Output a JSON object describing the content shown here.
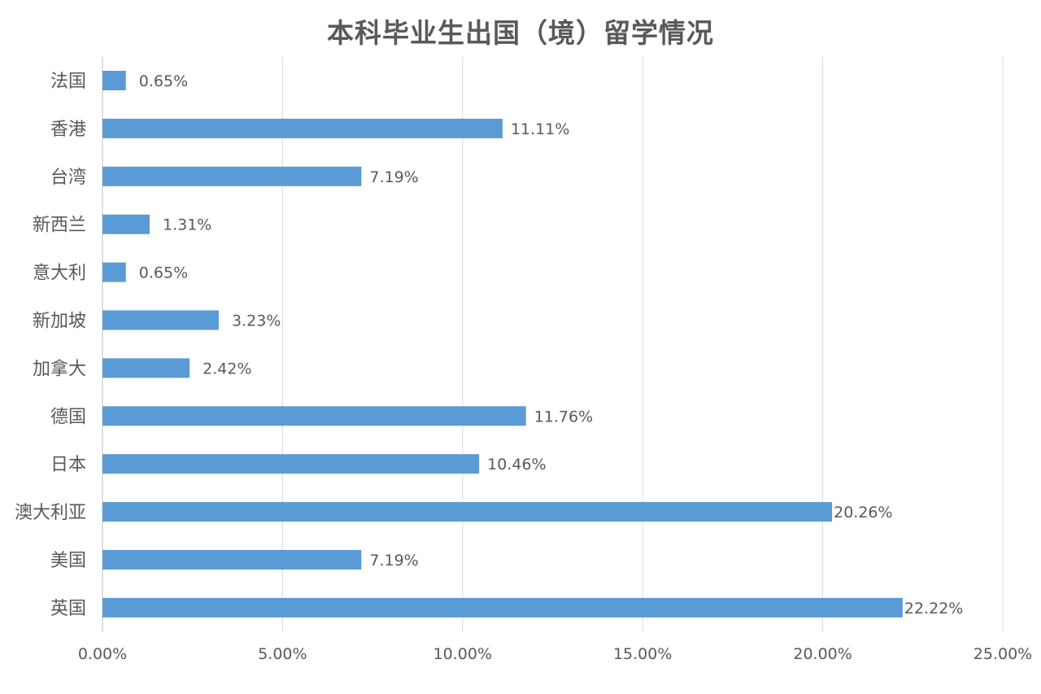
{
  "chart_data": {
    "type": "bar",
    "orientation": "horizontal",
    "title": "本科毕业生出国（境）留学情况",
    "xlabel": "",
    "ylabel": "",
    "xlim": [
      0,
      25
    ],
    "x_ticks": [
      0,
      5,
      10,
      15,
      20,
      25
    ],
    "x_tick_labels": [
      "0.00%",
      "5.00%",
      "10.00%",
      "15.00%",
      "20.00%",
      "25.00%"
    ],
    "grid": "vertical",
    "legend": "none",
    "categories": [
      "法国",
      "香港",
      "台湾",
      "新西兰",
      "意大利",
      "新加坡",
      "加拿大",
      "德国",
      "日本",
      "澳大利亚",
      "美国",
      "英国"
    ],
    "values": [
      0.65,
      11.11,
      7.19,
      1.31,
      0.65,
      3.23,
      2.42,
      11.76,
      10.46,
      20.26,
      7.19,
      22.22
    ],
    "data_labels": [
      "0.65%",
      "11.11%",
      "7.19%",
      "1.31%",
      "0.65%",
      "3.23%",
      "2.42%",
      "11.76%",
      "10.46%",
      "20.26%",
      "7.19%",
      "22.22%"
    ],
    "colors": {
      "bar": "#5b9bd5",
      "grid": "#d9d9d9",
      "axis": "#bfbfbf",
      "text": "#595959"
    }
  }
}
